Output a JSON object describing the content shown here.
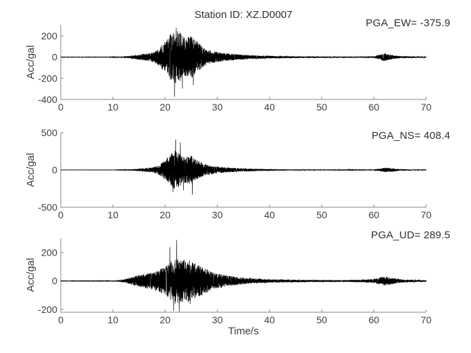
{
  "figure": {
    "title": "Station ID: XZ.D0007",
    "xlabel": "Time/s",
    "background": "#ffffff",
    "axis_color": "#878787",
    "tick_label_color": "#3f3f3f",
    "text_color": "#2f2f2f",
    "waveform_color": "#000000"
  },
  "chart_data": [
    {
      "type": "line",
      "component": "EW",
      "pga_label": "PGA_EW= -375.9",
      "pga": -375.9,
      "ylabel": "Acc/gal",
      "xlim": [
        0,
        70
      ],
      "xticks": [
        0,
        10,
        20,
        30,
        40,
        50,
        60,
        70
      ],
      "ylim": [
        -400,
        305
      ],
      "yticks": [
        200,
        0,
        -200,
        -400
      ],
      "seed": 7,
      "envelope": [
        [
          0,
          1.2
        ],
        [
          9,
          1.5
        ],
        [
          11,
          3
        ],
        [
          13,
          10
        ],
        [
          14,
          18
        ],
        [
          15,
          26
        ],
        [
          16,
          32
        ],
        [
          17,
          38
        ],
        [
          18,
          55
        ],
        [
          19,
          90
        ],
        [
          20,
          150
        ],
        [
          21,
          215
        ],
        [
          22,
          255
        ],
        [
          23,
          225
        ],
        [
          24,
          175
        ],
        [
          25,
          215
        ],
        [
          26,
          155
        ],
        [
          27,
          105
        ],
        [
          28,
          72
        ],
        [
          29,
          58
        ],
        [
          30,
          50
        ],
        [
          31,
          42
        ],
        [
          32,
          36
        ],
        [
          34,
          27
        ],
        [
          36,
          20
        ],
        [
          38,
          15
        ],
        [
          40,
          13
        ],
        [
          43,
          10
        ],
        [
          46,
          8
        ],
        [
          50,
          7
        ],
        [
          54,
          6
        ],
        [
          58,
          6
        ],
        [
          60,
          8
        ],
        [
          61,
          22
        ],
        [
          62,
          40
        ],
        [
          63,
          27
        ],
        [
          64,
          15
        ],
        [
          65,
          10
        ],
        [
          67,
          8
        ],
        [
          70,
          6
        ]
      ],
      "spikes": [
        [
          21.8,
          -375.9
        ],
        [
          22.1,
          278
        ],
        [
          23.3,
          -298
        ],
        [
          25.4,
          -265
        ]
      ]
    },
    {
      "type": "line",
      "component": "NS",
      "pga_label": "PGA_NS= 408.4",
      "pga": 408.4,
      "ylabel": "Acc/gal",
      "xlim": [
        0,
        70
      ],
      "xticks": [
        0,
        10,
        20,
        30,
        40,
        50,
        60,
        70
      ],
      "ylim": [
        -500,
        500
      ],
      "yticks": [
        500,
        0,
        -500
      ],
      "seed": 13,
      "envelope": [
        [
          0,
          1
        ],
        [
          10,
          1.4
        ],
        [
          12,
          3
        ],
        [
          13,
          6
        ],
        [
          14,
          11
        ],
        [
          15,
          18
        ],
        [
          16,
          23
        ],
        [
          17,
          30
        ],
        [
          18,
          42
        ],
        [
          19,
          75
        ],
        [
          20,
          135
        ],
        [
          21,
          205
        ],
        [
          21.8,
          265
        ],
        [
          22.5,
          235
        ],
        [
          23.2,
          205
        ],
        [
          24,
          175
        ],
        [
          25,
          195
        ],
        [
          26,
          135
        ],
        [
          27,
          98
        ],
        [
          28,
          72
        ],
        [
          29,
          56
        ],
        [
          30,
          46
        ],
        [
          31,
          39
        ],
        [
          32,
          33
        ],
        [
          33,
          28
        ],
        [
          34,
          25
        ],
        [
          35,
          22
        ],
        [
          36,
          19
        ],
        [
          38,
          14
        ],
        [
          40,
          11
        ],
        [
          43,
          8
        ],
        [
          46,
          7
        ],
        [
          50,
          6
        ],
        [
          54,
          5
        ],
        [
          58,
          5
        ],
        [
          60,
          7
        ],
        [
          61,
          16
        ],
        [
          62,
          32
        ],
        [
          63,
          27
        ],
        [
          64,
          19
        ],
        [
          65,
          11
        ],
        [
          66,
          8
        ],
        [
          70,
          5
        ]
      ],
      "spikes": [
        [
          22.0,
          408.4
        ],
        [
          21.5,
          -295
        ],
        [
          22.9,
          368
        ],
        [
          25.2,
          -332
        ],
        [
          23.5,
          -275
        ]
      ]
    },
    {
      "type": "line",
      "component": "UD",
      "pga_label": "PGA_UD= 289.5",
      "pga": 289.5,
      "ylabel": "Acc/gal",
      "xlim": [
        0,
        70
      ],
      "xticks": [
        0,
        10,
        20,
        30,
        40,
        50,
        60,
        70
      ],
      "ylim": [
        -220,
        300
      ],
      "yticks": [
        200,
        0,
        -200
      ],
      "seed": 21,
      "envelope": [
        [
          0,
          1
        ],
        [
          9,
          1.5
        ],
        [
          11,
          5
        ],
        [
          12,
          9
        ],
        [
          13,
          20
        ],
        [
          14,
          32
        ],
        [
          15,
          42
        ],
        [
          16,
          50
        ],
        [
          17,
          57
        ],
        [
          18,
          67
        ],
        [
          19,
          82
        ],
        [
          20,
          105
        ],
        [
          21,
          135
        ],
        [
          22,
          165
        ],
        [
          23,
          155
        ],
        [
          24,
          148
        ],
        [
          25,
          142
        ],
        [
          26,
          118
        ],
        [
          27,
          102
        ],
        [
          28,
          82
        ],
        [
          29,
          64
        ],
        [
          30,
          54
        ],
        [
          31,
          47
        ],
        [
          32,
          39
        ],
        [
          33,
          33
        ],
        [
          34,
          27
        ],
        [
          35,
          23
        ],
        [
          36,
          20
        ],
        [
          37,
          18
        ],
        [
          38,
          16
        ],
        [
          40,
          13
        ],
        [
          42,
          11
        ],
        [
          45,
          9
        ],
        [
          48,
          8
        ],
        [
          52,
          7
        ],
        [
          55,
          7
        ],
        [
          57,
          9
        ],
        [
          58,
          10
        ],
        [
          60,
          14
        ],
        [
          61,
          24
        ],
        [
          62,
          34
        ],
        [
          63,
          26
        ],
        [
          64,
          19
        ],
        [
          65,
          13
        ],
        [
          66,
          10
        ],
        [
          68,
          8
        ],
        [
          70,
          6
        ]
      ],
      "spikes": [
        [
          22.2,
          289.5
        ],
        [
          21.6,
          -212
        ],
        [
          22.7,
          -216
        ],
        [
          20.9,
          238
        ],
        [
          24.8,
          -160
        ]
      ]
    }
  ]
}
